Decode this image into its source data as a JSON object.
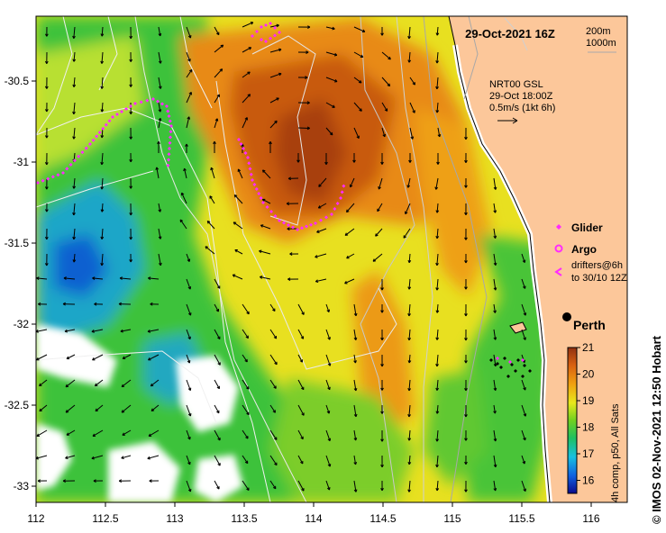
{
  "title": "29-Oct-2021 16Z",
  "depth_contours": [
    "200m",
    "1000m"
  ],
  "currents_info": {
    "source": "NRT00 GSL",
    "time": "29-Oct 18:00Z",
    "scale": "0.5m/s (1kt 6h)"
  },
  "legend": {
    "glider": "Glider",
    "argo": "Argo",
    "drifters_line1": "drifters@6h",
    "drifters_line2": "to 30/10 12Z"
  },
  "city": "Perth",
  "colorbar": {
    "label": "4h comp, p50, All Sats",
    "ticks": [
      "21",
      "20",
      "19",
      "18",
      "17",
      "16"
    ]
  },
  "credit": "© IMOS 02-Nov-2021 12:50 Hobart",
  "x_axis": {
    "ticks": [
      "112",
      "112.5",
      "113",
      "113.5",
      "114",
      "114.5",
      "115",
      "115.5",
      "116"
    ]
  },
  "y_axis": {
    "ticks": [
      "-30.5",
      "-31",
      "-31.5",
      "-32",
      "-32.5",
      "-33"
    ]
  },
  "colors": {
    "land": "#FCC79A",
    "marker_magenta": "#FF2BFF",
    "cloud": "#FFFFFF"
  }
}
